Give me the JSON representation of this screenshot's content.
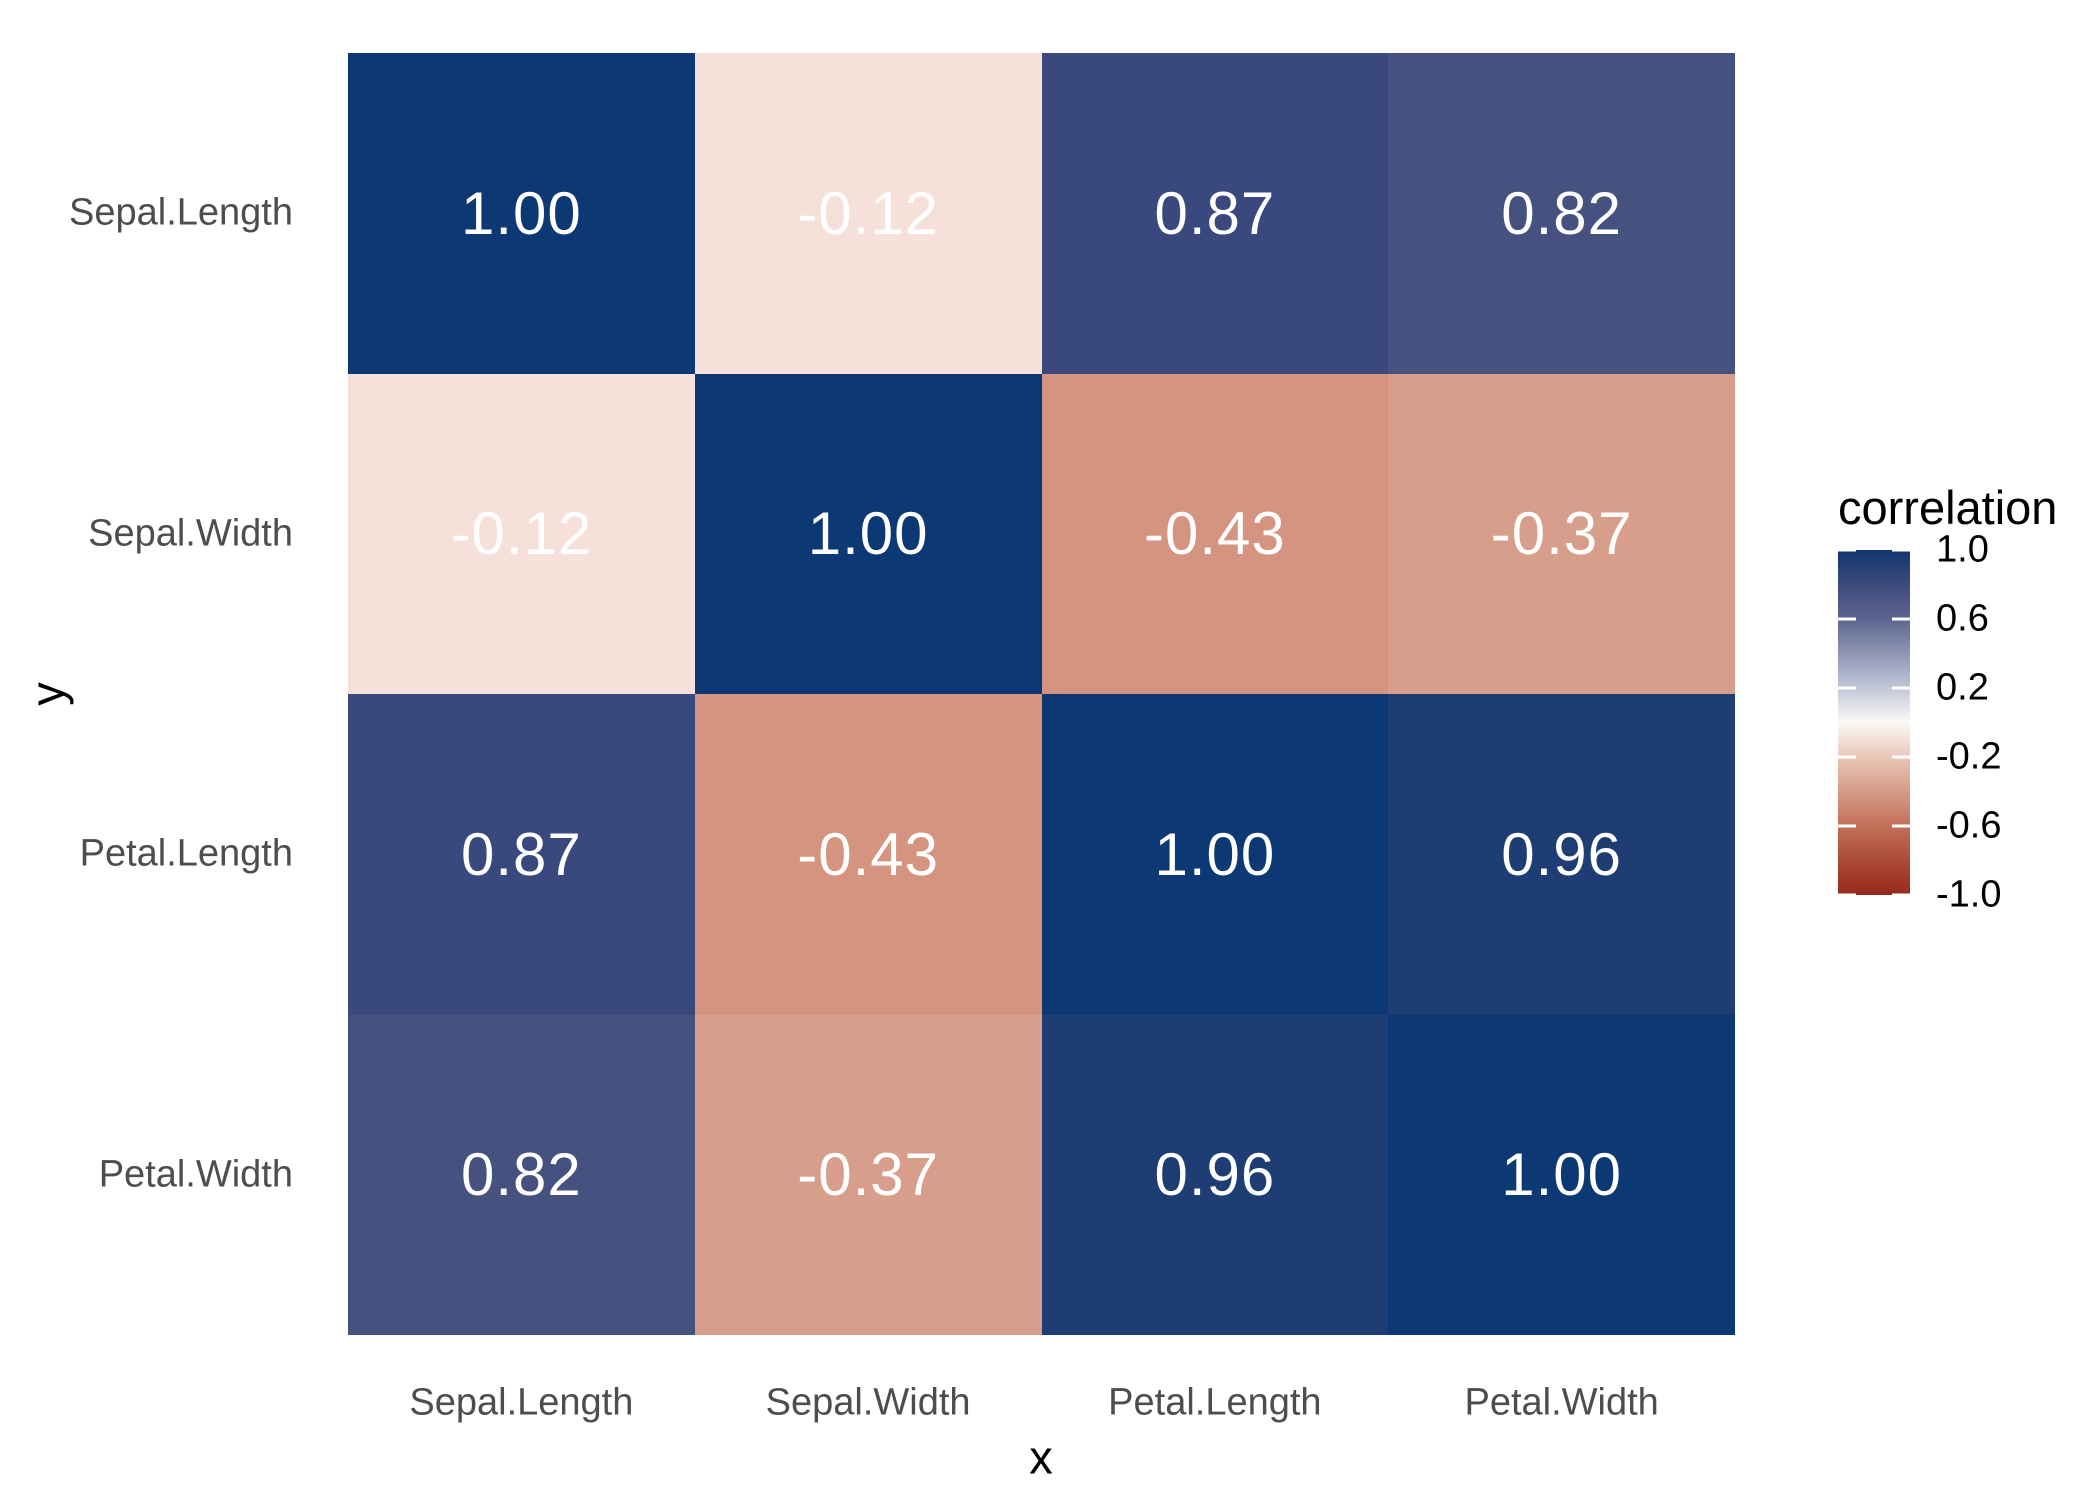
{
  "chart_data": {
    "type": "heatmap",
    "xlabel": "x",
    "ylabel": "y",
    "x_categories": [
      "Sepal.Length",
      "Sepal.Width",
      "Petal.Length",
      "Petal.Width"
    ],
    "y_categories": [
      "Sepal.Length",
      "Sepal.Width",
      "Petal.Length",
      "Petal.Width"
    ],
    "values": [
      [
        1.0,
        -0.12,
        0.87,
        0.82
      ],
      [
        -0.12,
        1.0,
        -0.43,
        -0.37
      ],
      [
        0.87,
        -0.43,
        1.0,
        0.96
      ],
      [
        0.82,
        -0.37,
        0.96,
        1.0
      ]
    ],
    "cell_labels": [
      [
        "1.00",
        "-0.12",
        "0.87",
        "0.82"
      ],
      [
        "-0.12",
        "1.00",
        "-0.43",
        "-0.37"
      ],
      [
        "0.87",
        "-0.43",
        "1.00",
        "0.96"
      ],
      [
        "0.82",
        "-0.37",
        "0.96",
        "1.00"
      ]
    ],
    "cell_colors": [
      [
        "#0C3873",
        "#F6E1DA",
        "#39497D",
        "#45517F"
      ],
      [
        "#F6E1DA",
        "#0C3873",
        "#D5947F",
        "#D89E8C"
      ],
      [
        "#39497D",
        "#D5947F",
        "#0C3873",
        "#1E3D72"
      ],
      [
        "#45517F",
        "#D89E8C",
        "#1E3D72",
        "#0C3873"
      ]
    ],
    "grid": false,
    "legend": {
      "title": "correlation",
      "position": "right",
      "tick_labels": [
        "1.0",
        "0.6",
        "0.2",
        "-0.2",
        "-0.6",
        "-1.0"
      ],
      "range": [
        -1.0,
        1.0
      ],
      "gradient_stops": [
        {
          "pos": 0,
          "color": "#0F366F"
        },
        {
          "pos": 10,
          "color": "#3D4A7B"
        },
        {
          "pos": 20,
          "color": "#5C6590"
        },
        {
          "pos": 30,
          "color": "#8F96B4"
        },
        {
          "pos": 40,
          "color": "#C2C6D8"
        },
        {
          "pos": 50,
          "color": "#FBF9F8"
        },
        {
          "pos": 60,
          "color": "#E9C7B8"
        },
        {
          "pos": 70,
          "color": "#D69B87"
        },
        {
          "pos": 80,
          "color": "#C2705A"
        },
        {
          "pos": 90,
          "color": "#AC4B35"
        },
        {
          "pos": 100,
          "color": "#96291C"
        }
      ]
    },
    "colors": {
      "high": "#0C3873",
      "mid": "#FFFFFF",
      "low": "#96291C",
      "cell_text": "#FFFFFF",
      "axis_text": "#4D4D4D",
      "title_text": "#000000",
      "background": "#FFFFFF"
    }
  }
}
